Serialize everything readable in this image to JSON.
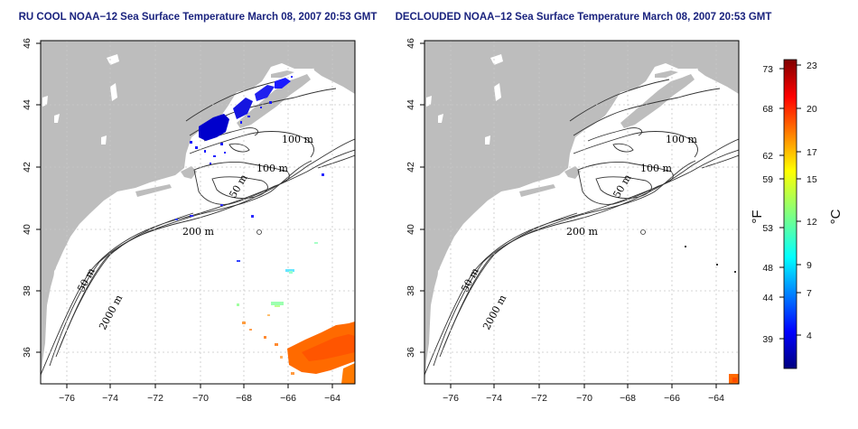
{
  "panels": [
    {
      "id": "ru-cool",
      "title": "RU COOL NOAA−12 Sea Surface Temperature March 08, 2007 20:53 GMT",
      "contour_labels": [
        "100 m",
        "100 m",
        "50 m",
        "200 m",
        "50 m",
        "2000 m"
      ]
    },
    {
      "id": "declouded",
      "title": "DECLOUDED NOAA−12 Sea Surface Temperature March 08, 2007 20:53 GMT",
      "contour_labels": [
        "100 m",
        "100 m",
        "50 m",
        "200 m",
        "50 m",
        "2000 m"
      ]
    }
  ],
  "axes": {
    "lon_ticks": [
      "−76",
      "−74",
      "−72",
      "−70",
      "−68",
      "−66",
      "−64"
    ],
    "lat_ticks": [
      "36",
      "38",
      "40",
      "42",
      "44",
      "46"
    ],
    "lon_range": [
      -77,
      -63
    ],
    "lat_range": [
      35,
      46
    ]
  },
  "colorbar": {
    "fahrenheit_label": "°F",
    "celsius_label": "°C",
    "fahrenheit_ticks": [
      "73",
      "68",
      "62",
      "59",
      "53",
      "48",
      "44",
      "39"
    ],
    "celsius_ticks": [
      "23",
      "20",
      "17",
      "15",
      "12",
      "9",
      "7",
      "4"
    ]
  },
  "colors": {
    "land": "#bdbdbd",
    "title": "#1a237e",
    "grid": "#c8c8c8"
  }
}
